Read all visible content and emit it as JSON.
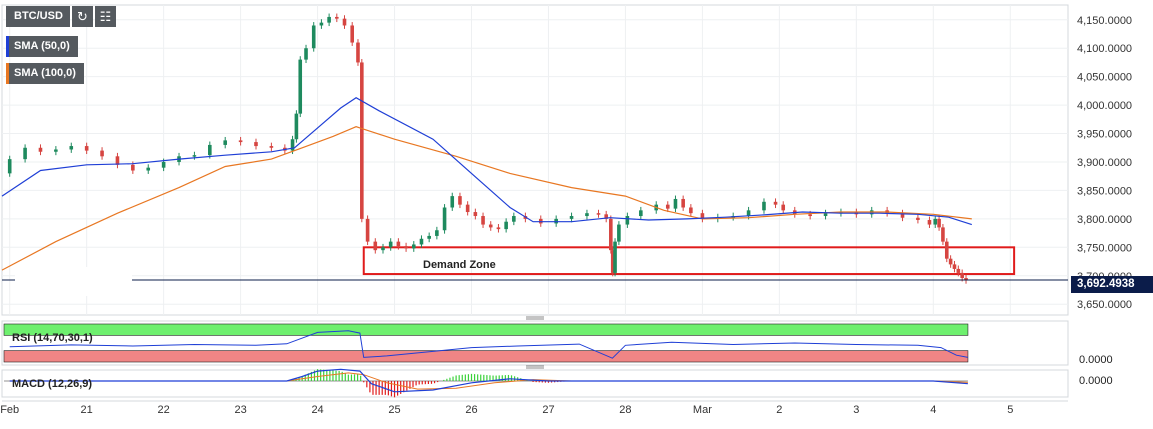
{
  "toolbar": {
    "symbol": "BTC/USD",
    "refresh_icon": "refresh-icon",
    "indicator_icon": "indicators-icon"
  },
  "legend": {
    "sma50": {
      "label": "SMA (50,0)",
      "color": "#1f3fd6"
    },
    "sma100": {
      "label": "SMA (100,0)",
      "color": "#e87722"
    }
  },
  "annotation": {
    "demand_zone": "Demand Zone",
    "color": "#e01b1b"
  },
  "last_price": "3,692.4938",
  "rsi": {
    "label": "RSI (14,70,30,1)",
    "axis_value": "0.0000"
  },
  "macd": {
    "label": "MACD (12,26,9)",
    "axis_value": "0.0000"
  },
  "chart_data": {
    "type": "line",
    "title": "BTC/USD",
    "series_kind": "candlestick price with SMA(50) and SMA(100)",
    "price_axis": {
      "ticks": [
        "4,150.0000",
        "4,100.0000",
        "4,050.0000",
        "4,000.0000",
        "3,950.0000",
        "3,900.0000",
        "3,850.0000",
        "3,800.0000",
        "3,750.0000",
        "3,700.0000",
        "3,650.0000"
      ],
      "tick_values": [
        4150,
        4100,
        4050,
        4000,
        3950,
        3900,
        3850,
        3800,
        3750,
        3700,
        3650
      ],
      "ylim": [
        3631,
        4176
      ]
    },
    "time_axis": {
      "ticks": [
        "Feb",
        "21",
        "22",
        "23",
        "24",
        "25",
        "26",
        "27",
        "28",
        "Mar",
        "2",
        "3",
        "4",
        "5"
      ],
      "tick_days": [
        20,
        21,
        22,
        23,
        24,
        25,
        26,
        27,
        28,
        29,
        30,
        31,
        32,
        33
      ],
      "xlim": [
        19.9,
        33.75
      ]
    },
    "price_path": [
      [
        19.9,
        3880
      ],
      [
        20.1,
        3905
      ],
      [
        20.3,
        3925
      ],
      [
        20.5,
        3918
      ],
      [
        20.7,
        3922
      ],
      [
        20.9,
        3928
      ],
      [
        21.1,
        3920
      ],
      [
        21.3,
        3910
      ],
      [
        21.5,
        3895
      ],
      [
        21.7,
        3885
      ],
      [
        21.9,
        3890
      ],
      [
        22.1,
        3900
      ],
      [
        22.3,
        3910
      ],
      [
        22.5,
        3912
      ],
      [
        22.7,
        3930
      ],
      [
        22.9,
        3938
      ],
      [
        23.1,
        3935
      ],
      [
        23.3,
        3928
      ],
      [
        23.5,
        3925
      ],
      [
        23.65,
        3920
      ],
      [
        23.7,
        3940
      ],
      [
        23.75,
        3985
      ],
      [
        23.8,
        4080
      ],
      [
        23.9,
        4100
      ],
      [
        24.0,
        4140
      ],
      [
        24.1,
        4145
      ],
      [
        24.2,
        4155
      ],
      [
        24.3,
        4152
      ],
      [
        24.4,
        4140
      ],
      [
        24.5,
        4110
      ],
      [
        24.55,
        4075
      ],
      [
        24.6,
        3800
      ],
      [
        24.7,
        3760
      ],
      [
        24.8,
        3745
      ],
      [
        24.9,
        3750
      ],
      [
        25.0,
        3760
      ],
      [
        25.1,
        3752
      ],
      [
        25.2,
        3748
      ],
      [
        25.3,
        3755
      ],
      [
        25.4,
        3765
      ],
      [
        25.5,
        3770
      ],
      [
        25.6,
        3780
      ],
      [
        25.7,
        3820
      ],
      [
        25.8,
        3840
      ],
      [
        25.9,
        3825
      ],
      [
        26.0,
        3812
      ],
      [
        26.1,
        3805
      ],
      [
        26.2,
        3790
      ],
      [
        26.3,
        3785
      ],
      [
        26.4,
        3782
      ],
      [
        26.5,
        3795
      ],
      [
        26.6,
        3805
      ],
      [
        26.8,
        3800
      ],
      [
        27.0,
        3792
      ],
      [
        27.2,
        3800
      ],
      [
        27.4,
        3805
      ],
      [
        27.6,
        3810
      ],
      [
        27.7,
        3808
      ],
      [
        27.8,
        3800
      ],
      [
        27.82,
        3745
      ],
      [
        27.85,
        3705
      ],
      [
        27.88,
        3760
      ],
      [
        27.95,
        3790
      ],
      [
        28.1,
        3805
      ],
      [
        28.3,
        3815
      ],
      [
        28.5,
        3825
      ],
      [
        28.6,
        3818
      ],
      [
        28.7,
        3835
      ],
      [
        28.8,
        3820
      ],
      [
        28.9,
        3810
      ],
      [
        29.1,
        3800
      ],
      [
        29.3,
        3803
      ],
      [
        29.5,
        3805
      ],
      [
        29.7,
        3815
      ],
      [
        29.9,
        3830
      ],
      [
        30.0,
        3825
      ],
      [
        30.1,
        3815
      ],
      [
        30.3,
        3808
      ],
      [
        30.5,
        3805
      ],
      [
        30.7,
        3810
      ],
      [
        30.9,
        3812
      ],
      [
        31.1,
        3808
      ],
      [
        31.3,
        3815
      ],
      [
        31.5,
        3810
      ],
      [
        31.7,
        3802
      ],
      [
        31.9,
        3798
      ],
      [
        32.0,
        3790
      ],
      [
        32.05,
        3800
      ],
      [
        32.1,
        3785
      ],
      [
        32.15,
        3760
      ],
      [
        32.2,
        3730
      ],
      [
        32.25,
        3720
      ],
      [
        32.3,
        3712
      ],
      [
        32.35,
        3705
      ],
      [
        32.4,
        3696
      ],
      [
        32.45,
        3692
      ]
    ],
    "sma50_path": [
      [
        19.9,
        3840
      ],
      [
        20.4,
        3885
      ],
      [
        21.0,
        3895
      ],
      [
        21.6,
        3897
      ],
      [
        22.2,
        3905
      ],
      [
        22.8,
        3912
      ],
      [
        23.4,
        3918
      ],
      [
        23.7,
        3925
      ],
      [
        24.0,
        3960
      ],
      [
        24.3,
        3995
      ],
      [
        24.5,
        4013
      ],
      [
        24.8,
        3990
      ],
      [
        25.5,
        3940
      ],
      [
        26.0,
        3880
      ],
      [
        26.5,
        3820
      ],
      [
        26.8,
        3795
      ],
      [
        27.3,
        3795
      ],
      [
        27.8,
        3802
      ],
      [
        28.3,
        3798
      ],
      [
        28.8,
        3800
      ],
      [
        29.3,
        3803
      ],
      [
        29.8,
        3807
      ],
      [
        30.3,
        3812
      ],
      [
        30.8,
        3810
      ],
      [
        31.3,
        3810
      ],
      [
        31.8,
        3808
      ],
      [
        32.2,
        3803
      ],
      [
        32.5,
        3790
      ]
    ],
    "sma100_path": [
      [
        19.9,
        3710
      ],
      [
        20.6,
        3760
      ],
      [
        21.4,
        3810
      ],
      [
        22.2,
        3855
      ],
      [
        22.8,
        3892
      ],
      [
        23.4,
        3905
      ],
      [
        23.8,
        3925
      ],
      [
        24.2,
        3945
      ],
      [
        24.5,
        3962
      ],
      [
        25.0,
        3940
      ],
      [
        25.8,
        3910
      ],
      [
        26.5,
        3880
      ],
      [
        27.3,
        3855
      ],
      [
        28.0,
        3840
      ],
      [
        28.5,
        3815
      ],
      [
        29.0,
        3800
      ],
      [
        29.6,
        3802
      ],
      [
        30.2,
        3808
      ],
      [
        30.8,
        3812
      ],
      [
        31.4,
        3812
      ],
      [
        32.0,
        3808
      ],
      [
        32.5,
        3800
      ]
    ],
    "demand_zone": {
      "x_days": [
        24.6,
        33.05
      ],
      "price_range": [
        3703,
        3750
      ]
    },
    "rsi_path": [
      [
        20,
        40
      ],
      [
        20.8,
        45
      ],
      [
        21.6,
        42
      ],
      [
        22.4,
        46
      ],
      [
        23.2,
        44
      ],
      [
        23.6,
        48
      ],
      [
        24.0,
        78
      ],
      [
        24.4,
        82
      ],
      [
        24.55,
        76
      ],
      [
        24.6,
        12
      ],
      [
        24.9,
        16
      ],
      [
        25.4,
        26
      ],
      [
        26.0,
        38
      ],
      [
        26.6,
        42
      ],
      [
        27.4,
        47
      ],
      [
        27.83,
        10
      ],
      [
        28.0,
        44
      ],
      [
        28.6,
        52
      ],
      [
        29.4,
        46
      ],
      [
        30.2,
        50
      ],
      [
        31.0,
        46
      ],
      [
        31.8,
        44
      ],
      [
        32.1,
        38
      ],
      [
        32.3,
        18
      ],
      [
        32.45,
        12
      ]
    ],
    "macd_line": [
      [
        20,
        0
      ],
      [
        23.6,
        0
      ],
      [
        23.8,
        10
      ],
      [
        24.0,
        22
      ],
      [
        24.3,
        26
      ],
      [
        24.55,
        22
      ],
      [
        24.7,
        -6
      ],
      [
        25.0,
        -24
      ],
      [
        25.5,
        -20
      ],
      [
        26.0,
        -4
      ],
      [
        26.5,
        5
      ],
      [
        27.0,
        0
      ],
      [
        28,
        0
      ],
      [
        32,
        0
      ],
      [
        32.45,
        -6
      ]
    ],
    "macd_signal": [
      [
        20,
        0
      ],
      [
        23.6,
        0
      ],
      [
        24.0,
        10
      ],
      [
        24.4,
        18
      ],
      [
        24.6,
        14
      ],
      [
        24.9,
        -4
      ],
      [
        25.3,
        -18
      ],
      [
        25.8,
        -16
      ],
      [
        26.3,
        -4
      ],
      [
        26.8,
        3
      ],
      [
        27.3,
        0
      ],
      [
        32,
        0
      ],
      [
        32.45,
        -3
      ]
    ]
  }
}
